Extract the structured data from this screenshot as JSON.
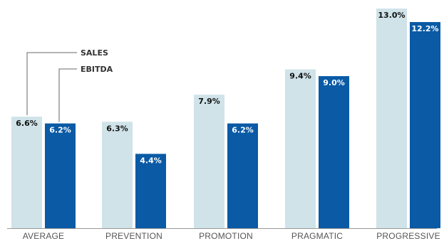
{
  "chart_data": {
    "type": "bar",
    "categories": [
      "AVERAGE",
      "PREVENTION",
      "PROMOTION",
      "PRAGMATIC",
      "PROGRESSIVE"
    ],
    "series": [
      {
        "name": "SALES",
        "values": [
          6.6,
          6.3,
          7.9,
          9.4,
          13.0
        ],
        "labels": [
          "6.6%",
          "6.3%",
          "7.9%",
          "9.4%",
          "13.0%"
        ],
        "color": "#cfe3e9",
        "label_color": "#111111"
      },
      {
        "name": "EBITDA",
        "values": [
          6.2,
          4.4,
          6.2,
          9.0,
          12.2
        ],
        "labels": [
          "6.2%",
          "4.4%",
          "6.2%",
          "9.0%",
          "12.2%"
        ],
        "color": "#0a5aa6",
        "label_color": "#ffffff"
      }
    ],
    "ylim": [
      0,
      13.0
    ],
    "grid": false,
    "legend": "callout-left",
    "axis_color": "#999999",
    "legend_line_color": "#888888"
  }
}
